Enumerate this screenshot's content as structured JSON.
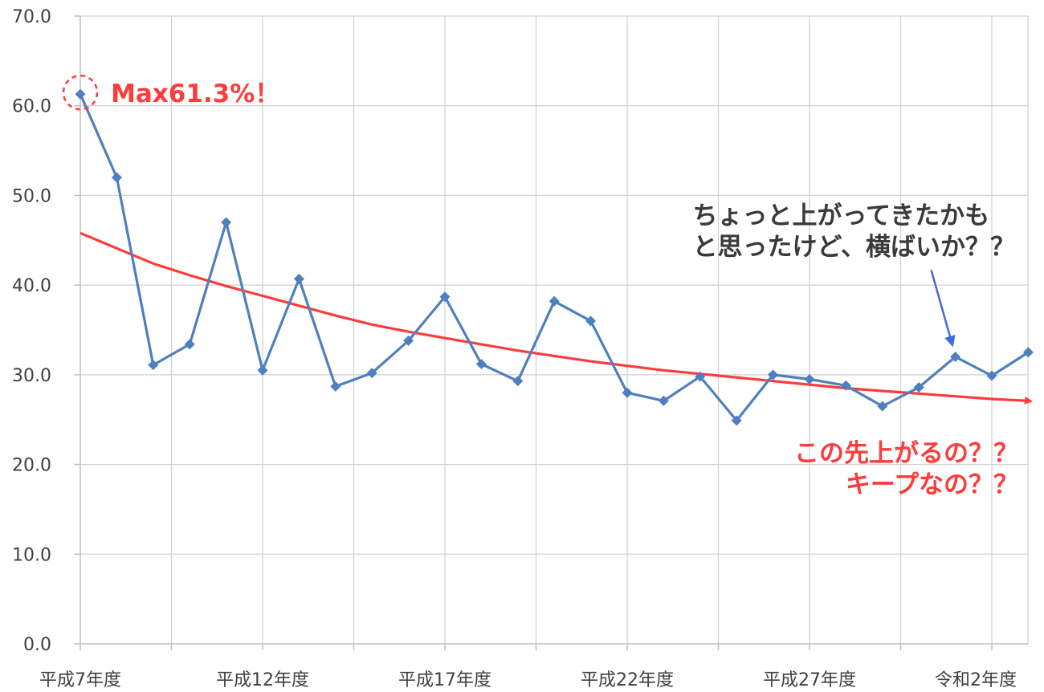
{
  "chart_data": {
    "type": "line",
    "ylim": [
      0,
      70
    ],
    "ytick_labels": [
      "0.0",
      "10.0",
      "20.0",
      "30.0",
      "40.0",
      "50.0",
      "60.0",
      "70.0"
    ],
    "xtick_labels": [
      {
        "index": 0,
        "label": "平成7年度"
      },
      {
        "index": 5,
        "label": "平成12年度"
      },
      {
        "index": 10,
        "label": "平成17年度"
      },
      {
        "index": 15,
        "label": "平成22年度"
      },
      {
        "index": 20,
        "label": "平成27年度"
      },
      {
        "index": 25,
        "label": "令和2年度"
      }
    ],
    "grid": true,
    "series": [
      {
        "color": "#4f7fbe",
        "marker": "diamond",
        "values": [
          61.3,
          52.0,
          31.1,
          33.4,
          47.0,
          30.5,
          40.7,
          28.7,
          30.2,
          33.8,
          38.7,
          31.2,
          29.3,
          38.2,
          36.0,
          28.0,
          27.1,
          29.8,
          24.9,
          30.0,
          29.5,
          28.8,
          26.5,
          28.6,
          32.0,
          29.9,
          32.5
        ]
      }
    ],
    "trendline": {
      "color": "#ff3b3b",
      "values": [
        45.8,
        44.1,
        42.4,
        41.1,
        39.9,
        38.8,
        37.7,
        36.6,
        35.6,
        34.8,
        34.1,
        33.4,
        32.7,
        32.1,
        31.5,
        31.0,
        30.5,
        30.1,
        29.7,
        29.3,
        28.9,
        28.5,
        28.2,
        27.9,
        27.6,
        27.3,
        27.1
      ]
    },
    "annotations": {
      "max_label": "Max61.3%！",
      "rising_comment": [
        "ちょっと上がってきたかも",
        "と思ったけど、横ばいか？？"
      ],
      "future_comment": [
        "この先上がるの？？",
        "キープなの？？"
      ]
    }
  },
  "colors": {
    "line": "#4f7fbe",
    "trend": "#ff3b3b",
    "grid": "#d0d0d0",
    "annotation_red": "#ff3b3b",
    "annotation_dark": "#3a3a3a",
    "arrow_blue": "#4169e1"
  }
}
